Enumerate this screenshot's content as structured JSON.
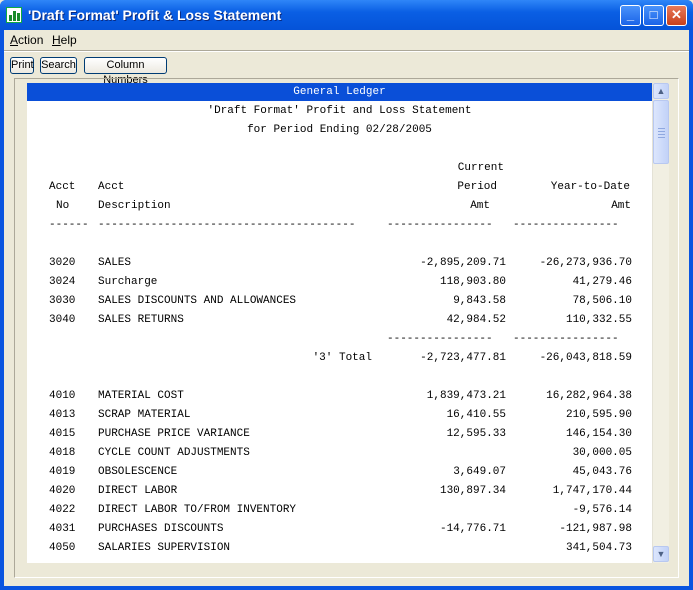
{
  "window": {
    "title": "'Draft Format' Profit & Loss Statement",
    "minimize_glyph": "_",
    "maximize_glyph": "□",
    "close_glyph": "✕"
  },
  "menu": {
    "action_u": "A",
    "action_rest": "ction",
    "help_u": "H",
    "help_rest": "elp"
  },
  "toolbar": {
    "print": "Print",
    "search": "Search",
    "column_numbers": "Column Numbers"
  },
  "report": {
    "header": "General Ledger",
    "title1": "'Draft Format' Profit and Loss Statement",
    "title2": "for Period Ending 02/28/2005",
    "col_current_top": "Current",
    "col_acct_1": "Acct",
    "col_desc_1": "Acct",
    "col_period": "Period",
    "col_ytd": "Year-to-Date",
    "col_acct_2": "No",
    "col_desc_2": "Description",
    "col_amt": "Amt",
    "col_ytd_amt": "Amt",
    "dash_acct": "------",
    "dash_desc": "---------------------------------------",
    "dash_amt": "----------------",
    "dash_ytd": "----------------",
    "rows_a": [
      {
        "acct": "3020",
        "desc": "SALES",
        "cur": "-2,895,209.71",
        "ytd": "-26,273,936.70"
      },
      {
        "acct": "3024",
        "desc": "Surcharge",
        "cur": "118,903.80",
        "ytd": "41,279.46"
      },
      {
        "acct": "3030",
        "desc": "SALES DISCOUNTS AND ALLOWANCES",
        "cur": "9,843.58",
        "ytd": "78,506.10"
      },
      {
        "acct": "3040",
        "desc": "SALES RETURNS",
        "cur": "42,984.52",
        "ytd": "110,332.55"
      }
    ],
    "subtotal_dash_cur": "----------------",
    "subtotal_dash_ytd": "----------------",
    "total_label": "'3' Total",
    "total_cur": "-2,723,477.81",
    "total_ytd": "-26,043,818.59",
    "rows_b": [
      {
        "acct": "4010",
        "desc": "MATERIAL COST",
        "cur": "1,839,473.21",
        "ytd": "16,282,964.38"
      },
      {
        "acct": "4013",
        "desc": "SCRAP MATERIAL",
        "cur": "16,410.55",
        "ytd": "210,595.90"
      },
      {
        "acct": "4015",
        "desc": "PURCHASE PRICE VARIANCE",
        "cur": "12,595.33",
        "ytd": "146,154.30"
      },
      {
        "acct": "4018",
        "desc": "CYCLE COUNT ADJUSTMENTS",
        "cur": "",
        "ytd": "30,000.05"
      },
      {
        "acct": "4019",
        "desc": "OBSOLESCENCE",
        "cur": "3,649.07",
        "ytd": "45,043.76"
      },
      {
        "acct": "4020",
        "desc": "DIRECT LABOR",
        "cur": "130,897.34",
        "ytd": "1,747,170.44"
      },
      {
        "acct": "4022",
        "desc": "DIRECT LABOR TO/FROM INVENTORY",
        "cur": "",
        "ytd": "-9,576.14"
      },
      {
        "acct": "4031",
        "desc": "PURCHASES DISCOUNTS",
        "cur": "-14,776.71",
        "ytd": "-121,987.98"
      },
      {
        "acct": "4050",
        "desc": "SALARIES SUPERVISION",
        "cur": "",
        "ytd": "341,504.73"
      }
    ]
  },
  "scrollbar": {
    "up_glyph": "▲",
    "down_glyph": "▼"
  }
}
